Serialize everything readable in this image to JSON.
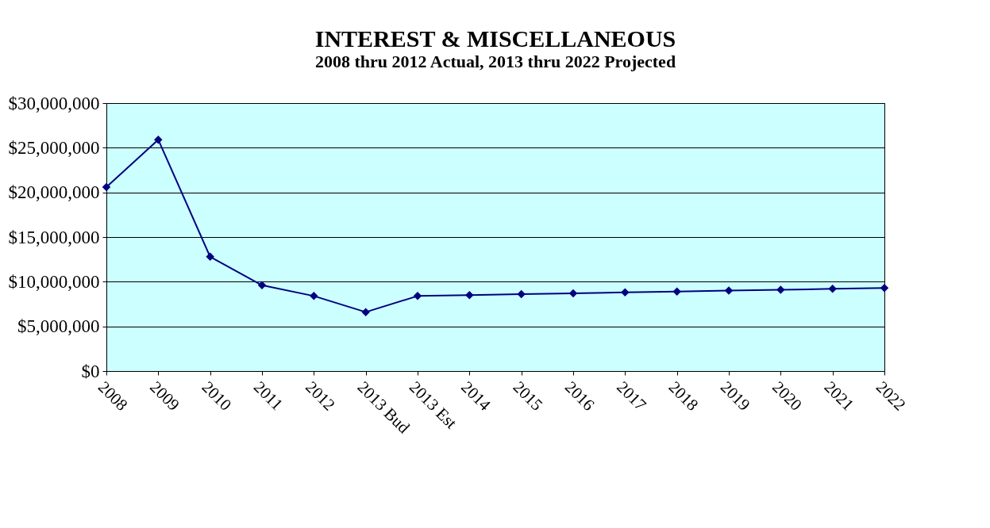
{
  "chart_data": {
    "type": "line",
    "title": "INTEREST & MISCELLANEOUS",
    "subtitle": "2008 thru 2012 Actual, 2013 thru 2022 Projected",
    "categories": [
      "2008",
      "2009",
      "2010",
      "2011",
      "2012",
      "2013 Bud",
      "2013 Est",
      "2014",
      "2015",
      "2016",
      "2017",
      "2018",
      "2019",
      "2020",
      "2021",
      "2022"
    ],
    "series": [
      {
        "color": "#000080",
        "values": [
          20600000,
          25900000,
          12800000,
          9600000,
          8400000,
          6600000,
          8400000,
          8500000,
          8600000,
          8700000,
          8800000,
          8900000,
          9000000,
          9100000,
          9200000,
          9300000
        ]
      }
    ],
    "ylim": [
      0,
      30000000
    ],
    "yticks": [
      {
        "value": 0,
        "label": "$0"
      },
      {
        "value": 5000000,
        "label": "$5,000,000"
      },
      {
        "value": 10000000,
        "label": "$10,000,000"
      },
      {
        "value": 15000000,
        "label": "$15,000,000"
      },
      {
        "value": 20000000,
        "label": "$20,000,000"
      },
      {
        "value": 25000000,
        "label": "$25,000,000"
      },
      {
        "value": 30000000,
        "label": "$30,000,000"
      }
    ],
    "grid": "y",
    "marker": "diamond",
    "line_style": "solid"
  }
}
